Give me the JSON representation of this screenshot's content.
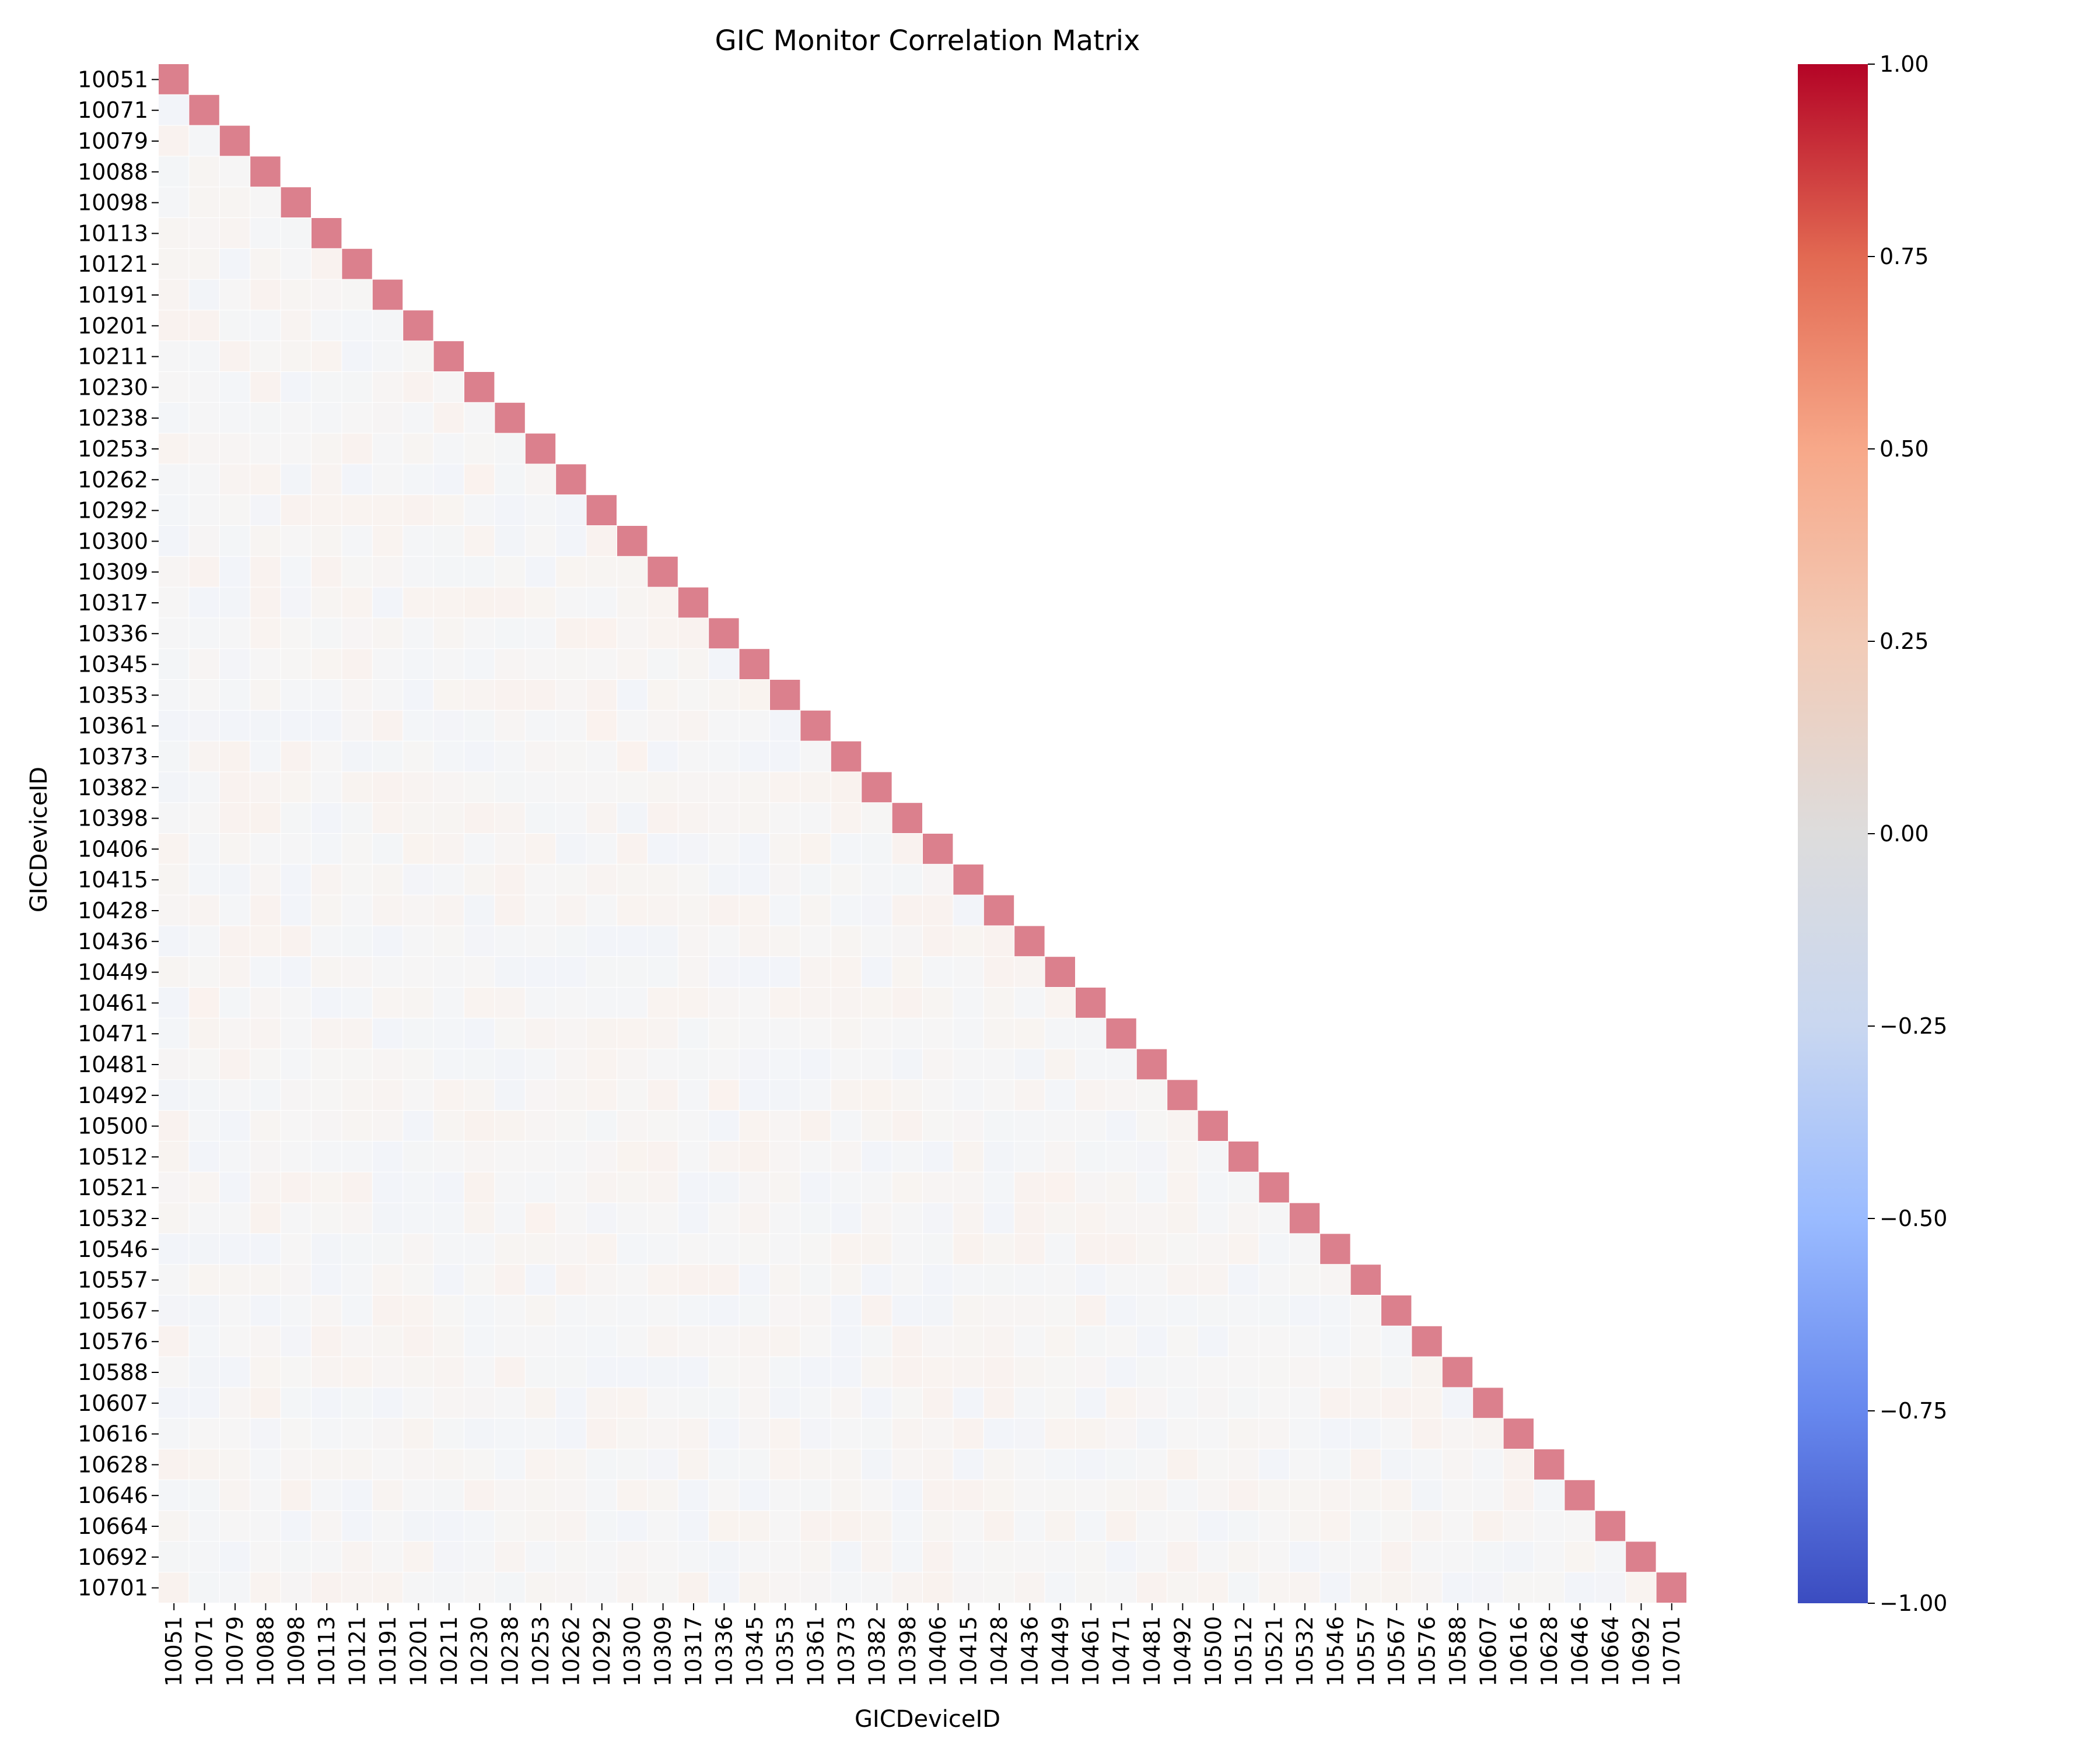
{
  "chart_data": {
    "type": "heatmap",
    "title": "GIC Monitor Correlation Matrix",
    "xlabel": "GICDeviceID",
    "ylabel": "GICDeviceID",
    "mask": "upper-triangle",
    "tick_labels": [
      "10051",
      "10071",
      "10079",
      "10088",
      "10098",
      "10113",
      "10121",
      "10191",
      "10201",
      "10211",
      "10230",
      "10238",
      "10253",
      "10262",
      "10292",
      "10300",
      "10309",
      "10317",
      "10336",
      "10345",
      "10353",
      "10361",
      "10373",
      "10382",
      "10398",
      "10406",
      "10415",
      "10428",
      "10436",
      "10449",
      "10461",
      "10471",
      "10481",
      "10492",
      "10500",
      "10512",
      "10521",
      "10532",
      "10546",
      "10557",
      "10567",
      "10576",
      "10588",
      "10607",
      "10616",
      "10628",
      "10646",
      "10664",
      "10692",
      "10701"
    ],
    "colorbar": {
      "ticks": [
        "1.00",
        "0.75",
        "0.50",
        "0.25",
        "0.00",
        "−0.25",
        "−0.50",
        "−0.75",
        "−1.00"
      ],
      "vmin": -1.0,
      "vmax": 1.0,
      "colormap": "coolwarm",
      "stops": [
        "#3b4cc0",
        "#6788ee",
        "#9abbff",
        "#c9d7f0",
        "#dddcdc",
        "#f2cbb7",
        "#f7a889",
        "#e26952",
        "#b40426"
      ]
    },
    "grid": "off",
    "legend": "colorbar-right"
  }
}
